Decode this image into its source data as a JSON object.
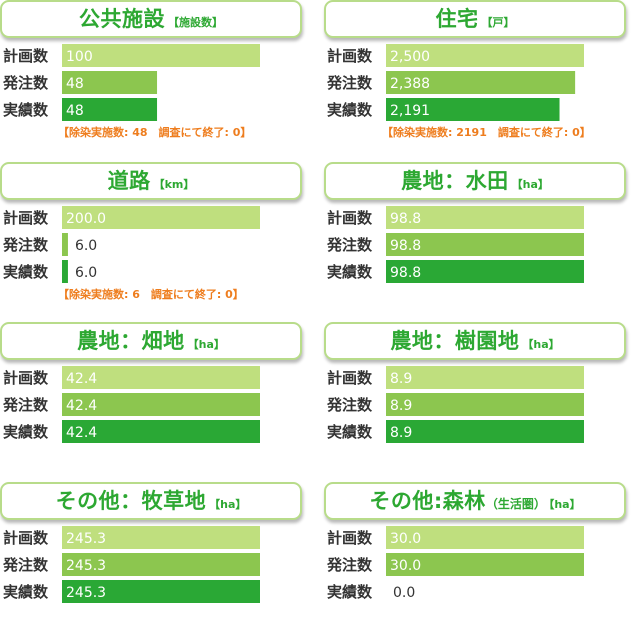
{
  "theme": {
    "plan": "#bfdf7e",
    "ordered": "#8cc64f",
    "done": "#2aa835",
    "label": "#333333",
    "accent": "#2da832",
    "note": "#ee7d1e"
  },
  "panels": [
    {
      "title": "公共施設",
      "subtitle": "",
      "unit": "【施設数】",
      "note": "【除染実施数: 48　調査にて終了: 0】",
      "chart_data": {
        "type": "bar",
        "orientation": "horizontal",
        "categories": [
          "計画数",
          "発注数",
          "実績数"
        ],
        "values": [
          100,
          48,
          48
        ],
        "value_labels": [
          "100",
          "48",
          "48"
        ]
      }
    },
    {
      "title": "住宅",
      "subtitle": "",
      "unit": "【戸】",
      "note": "【除染実施数: 2191　調査にて終了: 0】",
      "chart_data": {
        "type": "bar",
        "orientation": "horizontal",
        "categories": [
          "計画数",
          "発注数",
          "実績数"
        ],
        "values": [
          2500,
          2388,
          2191
        ],
        "value_labels": [
          "2,500",
          "2,388",
          "2,191"
        ]
      }
    },
    {
      "title": "道路",
      "subtitle": "",
      "unit": "【km】",
      "note": "【除染実施数: 6　調査にて終了: 0】",
      "chart_data": {
        "type": "bar",
        "orientation": "horizontal",
        "categories": [
          "計画数",
          "発注数",
          "実績数"
        ],
        "values": [
          200.0,
          6.0,
          6.0
        ],
        "value_labels": [
          "200.0",
          "6.0",
          "6.0"
        ]
      }
    },
    {
      "title": "農地：水田",
      "subtitle": "",
      "unit": "【ha】",
      "note": "",
      "chart_data": {
        "type": "bar",
        "orientation": "horizontal",
        "categories": [
          "計画数",
          "発注数",
          "実績数"
        ],
        "values": [
          98.8,
          98.8,
          98.8
        ],
        "value_labels": [
          "98.8",
          "98.8",
          "98.8"
        ]
      }
    },
    {
      "title": "農地：畑地",
      "subtitle": "",
      "unit": "【ha】",
      "note": "",
      "chart_data": {
        "type": "bar",
        "orientation": "horizontal",
        "categories": [
          "計画数",
          "発注数",
          "実績数"
        ],
        "values": [
          42.4,
          42.4,
          42.4
        ],
        "value_labels": [
          "42.4",
          "42.4",
          "42.4"
        ]
      }
    },
    {
      "title": "農地：樹園地",
      "subtitle": "",
      "unit": "【ha】",
      "note": "",
      "chart_data": {
        "type": "bar",
        "orientation": "horizontal",
        "categories": [
          "計画数",
          "発注数",
          "実績数"
        ],
        "values": [
          8.9,
          8.9,
          8.9
        ],
        "value_labels": [
          "8.9",
          "8.9",
          "8.9"
        ]
      }
    },
    {
      "title": "その他：牧草地",
      "subtitle": "",
      "unit": "【ha】",
      "note": "",
      "chart_data": {
        "type": "bar",
        "orientation": "horizontal",
        "categories": [
          "計画数",
          "発注数",
          "実績数"
        ],
        "values": [
          245.3,
          245.3,
          245.3
        ],
        "value_labels": [
          "245.3",
          "245.3",
          "245.3"
        ]
      }
    },
    {
      "title": "その他:森林",
      "subtitle": "（生活圏）",
      "unit": "【ha】",
      "note": "",
      "chart_data": {
        "type": "bar",
        "orientation": "horizontal",
        "categories": [
          "計画数",
          "発注数",
          "実績数"
        ],
        "values": [
          30.0,
          30.0,
          0.0
        ],
        "value_labels": [
          "30.0",
          "30.0",
          "0.0"
        ]
      }
    }
  ]
}
